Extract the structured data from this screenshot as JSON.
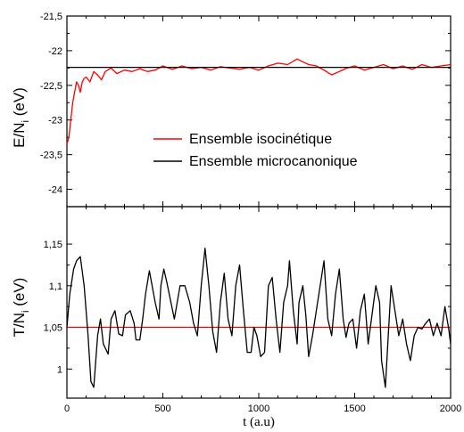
{
  "chart_data": [
    {
      "type": "line",
      "panel": "top",
      "ylabel_main": "E/N",
      "ylabel_sub": "i",
      "ylabel_unit": " (eV)",
      "xlim": [
        0,
        2000
      ],
      "ylim": [
        -24.25,
        -21.5
      ],
      "yticks": [
        -21.5,
        -22,
        -22.5,
        -23,
        -23.5,
        -24
      ],
      "ytick_labels": [
        "-21,5",
        "-22",
        "-22,5",
        "-23",
        "-23,5",
        "-24"
      ],
      "legend": {
        "placement": "center-right"
      },
      "series": [
        {
          "name": "Ensemble isocinétique",
          "color": "#ff0000",
          "x": [
            0,
            10,
            20,
            30,
            40,
            50,
            60,
            70,
            80,
            90,
            100,
            120,
            140,
            160,
            180,
            200,
            230,
            260,
            300,
            340,
            380,
            420,
            460,
            500,
            550,
            600,
            650,
            700,
            750,
            800,
            850,
            900,
            950,
            1000,
            1050,
            1100,
            1150,
            1200,
            1230,
            1260,
            1300,
            1340,
            1380,
            1420,
            1460,
            1500,
            1550,
            1600,
            1650,
            1700,
            1750,
            1800,
            1850,
            1900,
            1950,
            2000
          ],
          "values": [
            -23.35,
            -23.25,
            -23.0,
            -22.75,
            -22.6,
            -22.45,
            -22.5,
            -22.6,
            -22.45,
            -22.4,
            -22.38,
            -22.45,
            -22.3,
            -22.35,
            -22.42,
            -22.3,
            -22.25,
            -22.33,
            -22.28,
            -22.3,
            -22.26,
            -22.3,
            -22.28,
            -22.22,
            -22.27,
            -22.22,
            -22.26,
            -22.24,
            -22.28,
            -22.23,
            -22.25,
            -22.27,
            -22.24,
            -22.28,
            -22.22,
            -22.18,
            -22.2,
            -22.12,
            -22.16,
            -22.2,
            -22.22,
            -22.28,
            -22.35,
            -22.3,
            -22.25,
            -22.22,
            -22.28,
            -22.24,
            -22.2,
            -22.26,
            -22.22,
            -22.27,
            -22.2,
            -22.24,
            -22.22,
            -22.2
          ]
        },
        {
          "name": "Ensemble microcanonique",
          "color": "#000000",
          "x": [
            0,
            2000
          ],
          "values": [
            -22.24,
            -22.24
          ]
        }
      ]
    },
    {
      "type": "line",
      "panel": "bottom",
      "ylabel_main": "T/N",
      "ylabel_sub": "i",
      "ylabel_unit": " (eV)",
      "xlabel": "t (a.u)",
      "xlim": [
        0,
        2000
      ],
      "ylim": [
        0.965,
        1.195
      ],
      "yticks": [
        1.0,
        1.05,
        1.1,
        1.15
      ],
      "ytick_labels": [
        "1",
        "1,05",
        "1,1",
        "1,15"
      ],
      "xticks": [
        0,
        500,
        1000,
        1500,
        2000
      ],
      "xtick_labels": [
        "0",
        "500",
        "1000",
        "1500",
        "2000"
      ],
      "series": [
        {
          "name": "Ensemble isocinétique",
          "color": "#ff0000",
          "x": [
            0,
            2000
          ],
          "values": [
            1.05,
            1.05
          ]
        },
        {
          "name": "Ensemble microcanonique",
          "color": "#000000",
          "x": [
            0,
            15,
            35,
            50,
            70,
            90,
            110,
            125,
            140,
            160,
            175,
            190,
            215,
            230,
            250,
            270,
            290,
            305,
            330,
            350,
            360,
            380,
            395,
            410,
            430,
            460,
            480,
            490,
            505,
            520,
            560,
            590,
            615,
            640,
            660,
            680,
            700,
            720,
            740,
            760,
            780,
            800,
            820,
            840,
            860,
            880,
            900,
            920,
            940,
            960,
            975,
            990,
            1010,
            1030,
            1050,
            1070,
            1090,
            1110,
            1130,
            1150,
            1160,
            1180,
            1200,
            1210,
            1230,
            1245,
            1260,
            1280,
            1300,
            1320,
            1340,
            1360,
            1380,
            1400,
            1420,
            1440,
            1455,
            1470,
            1490,
            1510,
            1530,
            1550,
            1570,
            1590,
            1610,
            1630,
            1640,
            1660,
            1675,
            1690,
            1710,
            1730,
            1750,
            1770,
            1790,
            1810,
            1830,
            1850,
            1870,
            1890,
            1910,
            1930,
            1950,
            1970,
            1990,
            2000
          ],
          "values": [
            1.05,
            1.09,
            1.12,
            1.13,
            1.135,
            1.1,
            1.04,
            0.985,
            0.978,
            1.04,
            1.06,
            1.03,
            1.018,
            1.06,
            1.07,
            1.042,
            1.04,
            1.065,
            1.07,
            1.055,
            1.035,
            1.035,
            1.06,
            1.09,
            1.118,
            1.08,
            1.06,
            1.1,
            1.12,
            1.105,
            1.06,
            1.1,
            1.1,
            1.08,
            1.055,
            1.04,
            1.1,
            1.145,
            1.1,
            1.045,
            1.02,
            1.08,
            1.115,
            1.06,
            1.04,
            1.1,
            1.125,
            1.07,
            1.02,
            1.02,
            1.05,
            1.04,
            1.015,
            1.02,
            1.1,
            1.11,
            1.06,
            1.02,
            1.08,
            1.1,
            1.13,
            1.07,
            1.03,
            1.08,
            1.1,
            1.065,
            1.015,
            1.04,
            1.07,
            1.1,
            1.13,
            1.06,
            1.04,
            1.09,
            1.12,
            1.06,
            1.038,
            1.055,
            1.06,
            1.025,
            1.07,
            1.09,
            1.03,
            1.065,
            1.1,
            1.08,
            1.01,
            0.978,
            1.04,
            1.1,
            1.07,
            1.04,
            1.06,
            1.03,
            1.01,
            1.04,
            1.05,
            1.048,
            1.055,
            1.06,
            1.04,
            1.055,
            1.04,
            1.075,
            1.048,
            1.03
          ]
        }
      ]
    }
  ]
}
